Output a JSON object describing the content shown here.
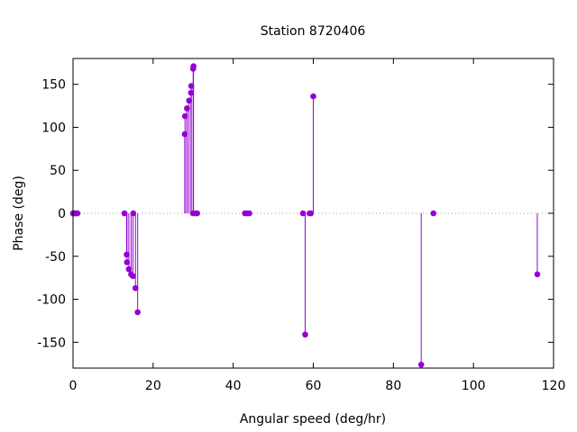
{
  "chart_data": {
    "type": "scatter",
    "style": "impulses-with-points",
    "title": "Station 8720406",
    "xlabel": "Angular speed (deg/hr)",
    "ylabel": "Phase (deg)",
    "xlim": [
      0,
      120
    ],
    "ylim": [
      -180,
      180
    ],
    "xticks": [
      0,
      20,
      40,
      60,
      80,
      100,
      120
    ],
    "yticks": [
      -150,
      -100,
      -50,
      0,
      50,
      100,
      150
    ],
    "grid": false,
    "zero_line": "dotted",
    "color": "#9400d3",
    "points": [
      {
        "x": 0.0,
        "y": 0
      },
      {
        "x": 0.04,
        "y": 0
      },
      {
        "x": 0.08,
        "y": 0
      },
      {
        "x": 0.5,
        "y": 0
      },
      {
        "x": 0.55,
        "y": 0
      },
      {
        "x": 1.02,
        "y": 0
      },
      {
        "x": 1.1,
        "y": 0
      },
      {
        "x": 12.85,
        "y": 0
      },
      {
        "x": 13.4,
        "y": -48
      },
      {
        "x": 13.47,
        "y": -57
      },
      {
        "x": 13.94,
        "y": -65
      },
      {
        "x": 14.5,
        "y": -71
      },
      {
        "x": 14.96,
        "y": -73
      },
      {
        "x": 15.04,
        "y": 0
      },
      {
        "x": 15.59,
        "y": -87
      },
      {
        "x": 16.14,
        "y": -115
      },
      {
        "x": 27.9,
        "y": 92
      },
      {
        "x": 27.97,
        "y": 113
      },
      {
        "x": 28.44,
        "y": 122
      },
      {
        "x": 28.5,
        "y": 122
      },
      {
        "x": 28.98,
        "y": 131
      },
      {
        "x": 29.46,
        "y": 140
      },
      {
        "x": 29.53,
        "y": 148
      },
      {
        "x": 29.96,
        "y": 0
      },
      {
        "x": 30.0,
        "y": 168
      },
      {
        "x": 30.08,
        "y": 171
      },
      {
        "x": 30.63,
        "y": 0
      },
      {
        "x": 31.0,
        "y": 0
      },
      {
        "x": 42.93,
        "y": 0
      },
      {
        "x": 43.48,
        "y": 0
      },
      {
        "x": 44.03,
        "y": 0
      },
      {
        "x": 57.42,
        "y": 0
      },
      {
        "x": 57.97,
        "y": -141
      },
      {
        "x": 59.07,
        "y": 0
      },
      {
        "x": 59.4,
        "y": 0
      },
      {
        "x": 60.0,
        "y": 136
      },
      {
        "x": 86.95,
        "y": -176
      },
      {
        "x": 90.0,
        "y": 0
      },
      {
        "x": 115.94,
        "y": -71
      }
    ]
  }
}
